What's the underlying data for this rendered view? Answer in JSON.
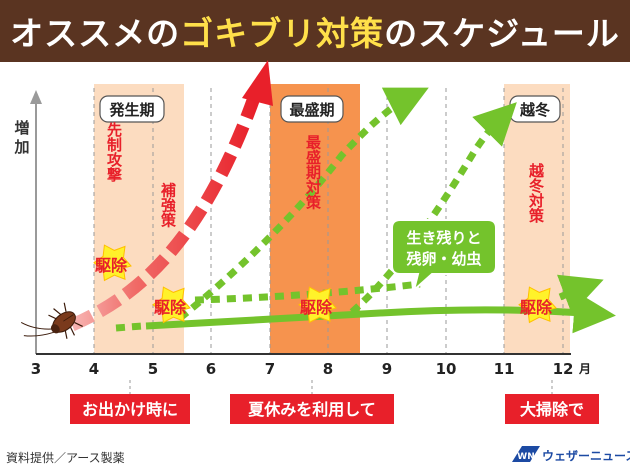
{
  "title": {
    "part1": "オススメの",
    "part2": "ゴキブリ対策",
    "part3": "のスケジュール"
  },
  "y_axis_label": [
    "増",
    "加"
  ],
  "phases": [
    {
      "label": "発生期"
    },
    {
      "label": "最盛期"
    },
    {
      "label": "越冬"
    }
  ],
  "x_axis": {
    "ticks": [
      "3",
      "4",
      "5",
      "6",
      "7",
      "8",
      "9",
      "10",
      "11",
      "12"
    ],
    "unit": "月"
  },
  "vertical_notes": [
    {
      "text": "先制攻撃"
    },
    {
      "text": "補強策"
    },
    {
      "text": "最盛期対策"
    },
    {
      "text": "越冬対策"
    }
  ],
  "starburst_label": "駆除",
  "callout": {
    "line1": "生き残りと",
    "line2": "残卵・幼虫"
  },
  "bottom_banners": [
    {
      "text": "お出かけ時に"
    },
    {
      "text": "夏休みを利用して"
    },
    {
      "text": "大掃除で"
    }
  ],
  "source": "資料提供／アース製薬",
  "logo": {
    "mark": "WN",
    "text": "ウェザーニュース"
  },
  "colors": {
    "title_bg": "#5a3421",
    "title_accent": "#ffe04a",
    "phase_band": "#fcdcc0",
    "peak_band": "#f6934e",
    "red_arrow": "#e8202a",
    "green_arrow": "#74c32c",
    "banner_red": "#e8202a",
    "starburst": "#fff22a"
  }
}
